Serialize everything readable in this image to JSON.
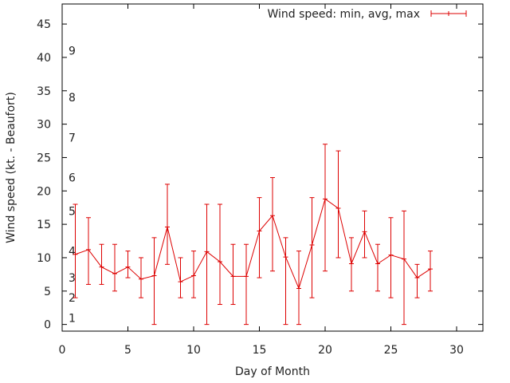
{
  "chart_data": {
    "type": "line",
    "subtype": "errorbars",
    "title": "",
    "xlabel": "Day of Month",
    "ylabel": "Wind speed (kt. - Beaufort)",
    "xlim": [
      0,
      32
    ],
    "ylim": [
      -1,
      48
    ],
    "xticks": [
      0,
      5,
      10,
      15,
      20,
      25,
      30
    ],
    "yticks": [
      0,
      5,
      10,
      15,
      20,
      25,
      30,
      35,
      40,
      45
    ],
    "beaufort_labels": [
      {
        "label": "1",
        "y": 1
      },
      {
        "label": "2",
        "y": 4
      },
      {
        "label": "3",
        "y": 7
      },
      {
        "label": "4",
        "y": 11
      },
      {
        "label": "5",
        "y": 17
      },
      {
        "label": "6",
        "y": 22
      },
      {
        "label": "7",
        "y": 28
      },
      {
        "label": "8",
        "y": 34
      },
      {
        "label": "9",
        "y": 41
      }
    ],
    "legend": "top-right",
    "series": [
      {
        "name": "Wind speed: min, avg, max",
        "color": "#dd0000",
        "x": [
          1,
          2,
          3,
          4,
          5,
          6,
          7,
          8,
          9,
          10,
          11,
          12,
          13,
          14,
          15,
          16,
          17,
          18,
          19,
          20,
          21,
          22,
          23,
          24,
          25,
          26,
          27,
          28
        ],
        "min": [
          4,
          6,
          6,
          5,
          7,
          4,
          0,
          9,
          4,
          4,
          0,
          3,
          3,
          0,
          7,
          8,
          0,
          0,
          4,
          8,
          10,
          5,
          10,
          5,
          4,
          0,
          4,
          5
        ],
        "avg": [
          10.5,
          11.2,
          8.6,
          7.6,
          8.6,
          6.8,
          7.3,
          14.6,
          6.4,
          7.3,
          10.9,
          9.4,
          7.2,
          7.2,
          14.0,
          16.3,
          10.1,
          5.4,
          11.9,
          18.8,
          17.4,
          9.1,
          13.9,
          9.1,
          10.4,
          9.8,
          7.0,
          8.3
        ],
        "max": [
          18,
          16,
          12,
          12,
          11,
          10,
          13,
          21,
          10,
          11,
          18,
          18,
          12,
          12,
          19,
          22,
          13,
          11,
          19,
          27,
          26,
          13,
          17,
          12,
          16,
          17,
          9,
          11
        ]
      }
    ]
  }
}
